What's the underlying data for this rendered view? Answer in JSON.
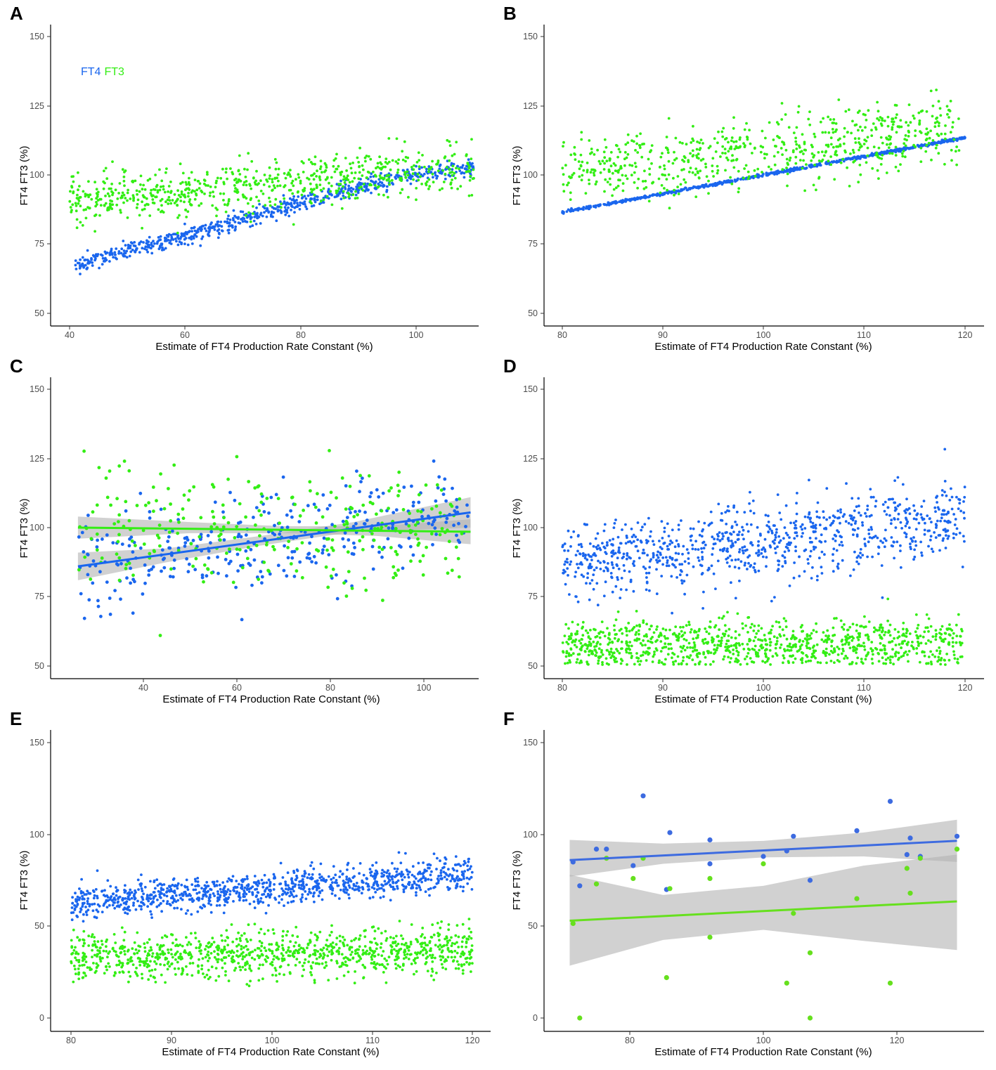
{
  "colors": {
    "FT4": "#1a66ee",
    "FT3": "#33ee14",
    "ribbon": "#b3b3b3"
  },
  "legend": {
    "ft4": "FT4",
    "ft3": "FT3"
  },
  "chart_data": [
    {
      "panel": "A",
      "type": "scatter",
      "xlabel": "Estimate of FT4 Production Rate Constant (%)",
      "ylabel": "FT4 FT3  (%)",
      "xlim": [
        37,
        110
      ],
      "ylim": [
        46,
        153
      ],
      "xticks": [
        40,
        60,
        80,
        100
      ],
      "yticks": [
        50,
        75,
        100,
        125,
        150
      ],
      "legend_position": "top-left",
      "series": [
        {
          "name": "FT4",
          "kind": "points",
          "n": 700,
          "x_range": [
            41,
            110
          ],
          "curve": [
            [
              41,
              67.5
            ],
            [
              60,
              78
            ],
            [
              80,
              90
            ],
            [
              100,
              100.5
            ],
            [
              110,
              103
            ]
          ],
          "spread": 1.6
        },
        {
          "name": "FT3",
          "kind": "points",
          "n": 700,
          "x_range": [
            40,
            110
          ],
          "curve": [
            [
              40,
              91
            ],
            [
              60,
              94
            ],
            [
              80,
              97
            ],
            [
              100,
              101
            ],
            [
              110,
              103
            ]
          ],
          "spread": 4.5
        }
      ]
    },
    {
      "panel": "B",
      "type": "scatter",
      "xlabel": "Estimate of FT4 Production Rate Constant  (%)",
      "ylabel": "FT4 FT3  (%)",
      "xlim": [
        78,
        121
      ],
      "ylim": [
        46,
        153
      ],
      "xticks": [
        80,
        90,
        100,
        110,
        120
      ],
      "yticks": [
        50,
        75,
        100,
        125,
        150
      ],
      "series": [
        {
          "name": "FT4",
          "kind": "points",
          "n": 700,
          "x_range": [
            80,
            120
          ],
          "curve": [
            [
              80,
              86.5
            ],
            [
              120,
              113.5
            ]
          ],
          "spread": 0.25
        },
        {
          "name": "FT3",
          "kind": "points",
          "n": 650,
          "x_range": [
            80,
            119.5
          ],
          "curve": [
            [
              80,
              100.5
            ],
            [
              120,
              117
            ]
          ],
          "spread": 6
        }
      ]
    },
    {
      "panel": "C",
      "type": "scatter",
      "xlabel": "Estimate of FT4 Production Rate Constant (%)",
      "ylabel": "FT4 FT3 (%)",
      "xlim": [
        21,
        110
      ],
      "ylim": [
        46,
        153
      ],
      "xticks": [
        40,
        60,
        80,
        100
      ],
      "yticks": [
        50,
        75,
        100,
        125,
        150
      ],
      "series": [
        {
          "name": "FT4",
          "kind": "points",
          "n": 330,
          "x_range": [
            26,
            110
          ],
          "curve": [
            [
              26,
              86
            ],
            [
              110,
              106
            ]
          ],
          "spread": 8.5,
          "fit": {
            "start": [
              26,
              86
            ],
            "end": [
              110,
              105.5
            ]
          },
          "ribbon": [
            [
              26,
              81,
              91
            ],
            [
              45,
              87.5,
              92.5
            ],
            [
              65,
              93.5,
              97
            ],
            [
              85,
              98.5,
              102
            ],
            [
              110,
              100,
              111
            ]
          ]
        },
        {
          "name": "FT3",
          "kind": "points",
          "n": 280,
          "x_range": [
            26,
            110
          ],
          "curve": [
            [
              26,
              100
            ],
            [
              110,
              99
            ]
          ],
          "spread": 10,
          "fit": {
            "start": [
              26,
              100
            ],
            "end": [
              110,
              98.5
            ]
          },
          "ribbon": [
            [
              26,
              96,
              104
            ],
            [
              50,
              98,
              102
            ],
            [
              70,
              98,
              100.5
            ],
            [
              90,
              97,
              100.5
            ],
            [
              110,
              94,
              103
            ]
          ]
        }
      ]
    },
    {
      "panel": "D",
      "type": "scatter",
      "xlabel": "Estimate of FT4 Production Rate Constant (%)",
      "ylabel": "FT4 FT3  (%)",
      "xlim": [
        78,
        121
      ],
      "ylim": [
        46,
        153
      ],
      "xticks": [
        80,
        90,
        100,
        110,
        120
      ],
      "yticks": [
        50,
        75,
        100,
        125,
        150
      ],
      "series": [
        {
          "name": "FT4",
          "kind": "points",
          "n": 900,
          "x_range": [
            80,
            120
          ],
          "curve": [
            [
              80,
              87
            ],
            [
              120,
              103
            ]
          ],
          "spread": 7
        },
        {
          "name": "FT3",
          "kind": "points",
          "n": 1000,
          "x_range": [
            80,
            119.8
          ],
          "curve": [
            [
              80,
              57.5
            ],
            [
              120,
              58.5
            ]
          ],
          "spread": 4.5,
          "clip": [
            50.5,
            75
          ]
        }
      ]
    },
    {
      "panel": "E",
      "type": "scatter",
      "xlabel": "Estimate of FT4 Production Rate Constant (%)",
      "ylabel": "FT4 FT3 (%)",
      "xlim": [
        78,
        121
      ],
      "ylim": [
        -6,
        161
      ],
      "xticks": [
        80,
        90,
        100,
        110,
        120
      ],
      "yticks": [
        0,
        50,
        100,
        150
      ],
      "series": [
        {
          "name": "FT4",
          "kind": "points",
          "n": 1000,
          "x_range": [
            80,
            120
          ],
          "curve": [
            [
              80,
              63
            ],
            [
              120,
              78
            ]
          ],
          "spread": 4.5
        },
        {
          "name": "FT3",
          "kind": "points",
          "n": 1000,
          "x_range": [
            80,
            120
          ],
          "curve": [
            [
              80,
              33
            ],
            [
              120,
              37
            ]
          ],
          "spread": 6.5
        }
      ]
    },
    {
      "panel": "F",
      "type": "scatter",
      "xlabel": "Estimate of FT4 Production Rate Constant (%)",
      "ylabel": "FT4 FT3 (%)",
      "xlim": [
        67,
        132
      ],
      "ylim": [
        -6,
        161
      ],
      "xticks": [
        80,
        100,
        120
      ],
      "yticks": [
        0,
        50,
        100,
        150
      ],
      "series": [
        {
          "name": "FT4",
          "kind": "points_explicit",
          "color": "#3d6be0",
          "points": [
            [
              71.5,
              85
            ],
            [
              72.5,
              72
            ],
            [
              75,
              92
            ],
            [
              76.5,
              92
            ],
            [
              80.5,
              83
            ],
            [
              82,
              121
            ],
            [
              85.5,
              70
            ],
            [
              86,
              101
            ],
            [
              92,
              97
            ],
            [
              92,
              84
            ],
            [
              100,
              88
            ],
            [
              103.5,
              91
            ],
            [
              104.5,
              99
            ],
            [
              107,
              75
            ],
            [
              114,
              102
            ],
            [
              119,
              118
            ],
            [
              121.5,
              89
            ],
            [
              122,
              98
            ],
            [
              123.5,
              88
            ],
            [
              129,
              99
            ]
          ],
          "fit": {
            "start": [
              71,
              86
            ],
            "end": [
              129,
              96.5
            ]
          },
          "ribbon": [
            [
              71,
              77,
              97
            ],
            [
              85,
              84,
              95
            ],
            [
              100,
              87.5,
              96.5
            ],
            [
              115,
              88,
              101
            ],
            [
              129,
              85,
              108
            ]
          ]
        },
        {
          "name": "FT3",
          "kind": "points_explicit",
          "color": "#66e01e",
          "points": [
            [
              71.5,
              51.5
            ],
            [
              72.5,
              0
            ],
            [
              75,
              73
            ],
            [
              76.5,
              87
            ],
            [
              80.5,
              76
            ],
            [
              82,
              87
            ],
            [
              85.5,
              22
            ],
            [
              86,
              70.5
            ],
            [
              92,
              76
            ],
            [
              92,
              44
            ],
            [
              100,
              84
            ],
            [
              103.5,
              19
            ],
            [
              104.5,
              57
            ],
            [
              107,
              0
            ],
            [
              107,
              35.5
            ],
            [
              114,
              65
            ],
            [
              119,
              19
            ],
            [
              121.5,
              81.5
            ],
            [
              122,
              68
            ],
            [
              123.5,
              87
            ],
            [
              129,
              92
            ]
          ],
          "fit": {
            "start": [
              71,
              53
            ],
            "end": [
              129,
              63.5
            ]
          },
          "ribbon": [
            [
              71,
              28.5,
              78
            ],
            [
              85,
              42.5,
              67
            ],
            [
              100,
              48,
              72
            ],
            [
              115,
              42,
              83
            ],
            [
              129,
              37,
              89
            ]
          ]
        }
      ]
    }
  ],
  "panels": [
    {
      "letter": "A",
      "xlabel": "Estimate of FT4 Production Rate Constant (%)",
      "ylabel": "FT4 FT3  (%)",
      "xticks": [
        "40",
        "60",
        "80",
        "100"
      ],
      "yticks": [
        "50",
        "75",
        "100",
        "125",
        "150"
      ]
    },
    {
      "letter": "B",
      "xlabel": "Estimate of FT4 Production Rate Constant  (%)",
      "ylabel": "FT4 FT3  (%)",
      "xticks": [
        "80",
        "90",
        "100",
        "110",
        "120"
      ],
      "yticks": [
        "50",
        "75",
        "100",
        "125",
        "150"
      ]
    },
    {
      "letter": "C",
      "xlabel": "Estimate of FT4 Production Rate Constant (%)",
      "ylabel": "FT4 FT3 (%)",
      "xticks": [
        "40",
        "60",
        "80",
        "100"
      ],
      "yticks": [
        "50",
        "75",
        "100",
        "125",
        "150"
      ]
    },
    {
      "letter": "D",
      "xlabel": "Estimate of FT4 Production Rate Constant (%)",
      "ylabel": "FT4 FT3  (%)",
      "xticks": [
        "80",
        "90",
        "100",
        "110",
        "120"
      ],
      "yticks": [
        "50",
        "75",
        "100",
        "125",
        "150"
      ]
    },
    {
      "letter": "E",
      "xlabel": "Estimate of FT4 Production Rate Constant (%)",
      "ylabel": "FT4 FT3 (%)",
      "xticks": [
        "80",
        "90",
        "100",
        "110",
        "120"
      ],
      "yticks": [
        "0",
        "50",
        "100",
        "150"
      ]
    },
    {
      "letter": "F",
      "xlabel": "Estimate of FT4 Production Rate Constant (%)",
      "ylabel": "FT4 FT3 (%)",
      "xticks": [
        "80",
        "100",
        "120"
      ],
      "yticks": [
        "0",
        "50",
        "100",
        "150"
      ]
    }
  ]
}
